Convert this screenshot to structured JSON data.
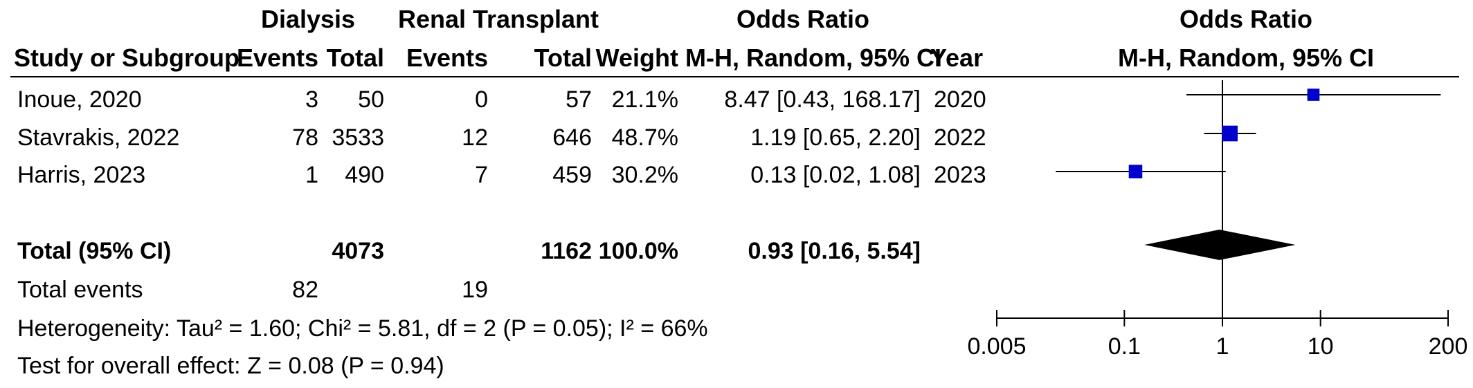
{
  "header": {
    "group1": "Dialysis",
    "group2": "Renal Transplant",
    "effect_table": "Odds Ratio",
    "effect_plot": "Odds Ratio",
    "col_study": "Study or Subgroup",
    "col_events1": "Events",
    "col_total1": "Total",
    "col_events2": "Events",
    "col_total2": "Total",
    "col_weight": "Weight",
    "col_method": "M-H, Random, 95% CI",
    "col_year": "Year",
    "plot_method": "M-H, Random, 95% CI"
  },
  "studies": [
    {
      "name": "Inoue, 2020",
      "events1": "3",
      "total1": "50",
      "events2": "0",
      "total2": "57",
      "weight": "21.1%",
      "ci_text": "8.47 [0.43, 168.17]",
      "year": "2020"
    },
    {
      "name": "Stavrakis, 2022",
      "events1": "78",
      "total1": "3533",
      "events2": "12",
      "total2": "646",
      "weight": "48.7%",
      "ci_text": "1.19 [0.65, 2.20]",
      "year": "2022"
    },
    {
      "name": "Harris, 2023",
      "events1": "1",
      "total1": "490",
      "events2": "7",
      "total2": "459",
      "weight": "30.2%",
      "ci_text": "0.13 [0.02, 1.08]",
      "year": "2023"
    }
  ],
  "total": {
    "label": "Total (95% CI)",
    "total1": "4073",
    "total2": "1162",
    "weight": "100.0%",
    "ci_text": "0.93 [0.16, 5.54]"
  },
  "total_events": {
    "label": "Total events",
    "events1": "82",
    "events2": "19"
  },
  "heterogeneity": "Heterogeneity: Tau² = 1.60; Chi² = 5.81, df = 2 (P = 0.05); I² = 66%",
  "overall_effect": "Test for overall effect: Z = 0.08 (P = 0.94)",
  "chart_data": {
    "type": "forest",
    "title": "Odds Ratio",
    "subtitle": "M-H, Random, 95% CI",
    "x_scale": "log",
    "xlim": [
      0.005,
      200
    ],
    "ticks": [
      0.005,
      0.1,
      1,
      10,
      200
    ],
    "tick_labels": [
      "0.005",
      "0.1",
      "1",
      "10",
      "200"
    ],
    "reference_line": 1,
    "series": [
      {
        "or": 8.47,
        "lower": 0.43,
        "upper": 168.17,
        "weight": 21.1
      },
      {
        "or": 1.19,
        "lower": 0.65,
        "upper": 2.2,
        "weight": 48.7
      },
      {
        "or": 0.13,
        "lower": 0.02,
        "upper": 1.08,
        "weight": 30.2
      }
    ],
    "pooled": {
      "or": 0.93,
      "lower": 0.16,
      "upper": 5.54
    },
    "colors": {
      "study_marker": "#0000cc",
      "pooled_diamond": "#000000",
      "lines": "#000000"
    }
  }
}
